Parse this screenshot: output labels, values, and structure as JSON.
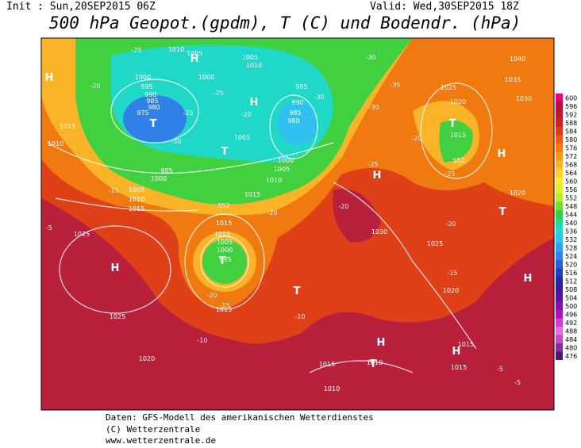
{
  "header": {
    "init": "Init : Sun,20SEP2015 06Z",
    "valid": "Valid: Wed,30SEP2015 18Z",
    "title": "500 hPa Geopot.(gpdm), T (C) und Bodendr. (hPa)"
  },
  "colorbar": {
    "levels": [
      600,
      596,
      592,
      588,
      584,
      580,
      576,
      572,
      568,
      564,
      560,
      556,
      552,
      548,
      544,
      540,
      536,
      532,
      528,
      524,
      520,
      516,
      512,
      508,
      504,
      500,
      496,
      492,
      488,
      484,
      480,
      476
    ],
    "colors": [
      "#e8007a",
      "#b0103a",
      "#c0182c",
      "#d02020",
      "#e03818",
      "#ee5a10",
      "#f47a10",
      "#f89820",
      "#fbb428",
      "#fdd030",
      "#f8e838",
      "#e0f030",
      "#b8ec30",
      "#70e030",
      "#30d040",
      "#20d890",
      "#20d8d0",
      "#30c0f0",
      "#30a0f0",
      "#3080e8",
      "#2860d8",
      "#2040c0",
      "#2828a0",
      "#3c1c98",
      "#5a10a0",
      "#8010b0",
      "#b010c0",
      "#d040d0",
      "#e070e0",
      "#c050c0",
      "#8030a0",
      "#501870"
    ]
  },
  "map_labels": [
    "1010",
    "1005",
    "1005",
    "1010",
    "1000",
    "995",
    "990",
    "985",
    "980",
    "975",
    "1000",
    "995",
    "990",
    "985",
    "980",
    "1015",
    "1010",
    "1005",
    "1000",
    "1005",
    "1010",
    "995",
    "1000",
    "1005",
    "1010",
    "1015",
    "1015",
    "552",
    "1015",
    "1010",
    "1005",
    "1000",
    "995",
    "1015",
    "1025",
    "1025",
    "1020",
    "1025",
    "1020",
    "1015",
    "552",
    "1035",
    "1040",
    "1030",
    "1020",
    "1030",
    "1025",
    "1020",
    "1015",
    "1015",
    "1010",
    "1010",
    "1015",
    "H",
    "H",
    "H",
    "T",
    "T",
    "T",
    "H",
    "H",
    "T",
    "H",
    "T",
    "T",
    "H",
    "H",
    "T",
    "H",
    "-25",
    "-20",
    "-25",
    "-30",
    "-20",
    "-25",
    "-30",
    "-30",
    "-35",
    "-30",
    "-25",
    "-20",
    "-25",
    "-20",
    "-20",
    "-20",
    "-15",
    "-15",
    "-20",
    "-10",
    "-10",
    "-15",
    "-5",
    "-5",
    "-5"
  ],
  "footer": [
    "Daten: GFS-Modell des amerikanischen Wetterdienstes",
    "(C) Wetterzentrale",
    "www.wetterzentrale.de"
  ]
}
